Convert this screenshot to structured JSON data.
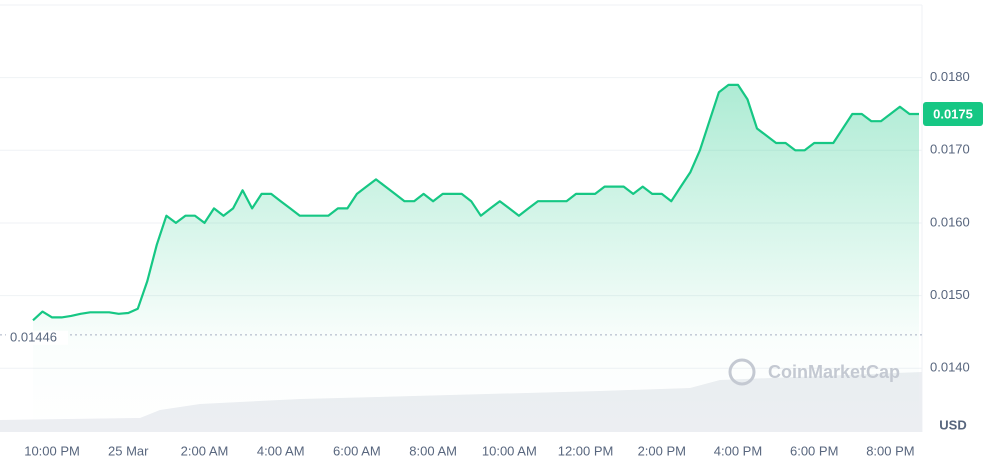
{
  "chart_data": {
    "type": "area",
    "values": [
      0.01466,
      0.01478,
      0.0147,
      0.0147,
      0.01472,
      0.01475,
      0.01477,
      0.01477,
      0.01477,
      0.01475,
      0.01476,
      0.01482,
      0.0152,
      0.0157,
      0.0161,
      0.016,
      0.0161,
      0.0161,
      0.016,
      0.0162,
      0.0161,
      0.0162,
      0.01645,
      0.0162,
      0.0164,
      0.0164,
      0.0163,
      0.0162,
      0.0161,
      0.0161,
      0.0161,
      0.0161,
      0.0162,
      0.0162,
      0.0164,
      0.0165,
      0.0166,
      0.0165,
      0.0164,
      0.0163,
      0.0163,
      0.0164,
      0.0163,
      0.0164,
      0.0164,
      0.0164,
      0.0163,
      0.0161,
      0.0162,
      0.0163,
      0.0162,
      0.0161,
      0.0162,
      0.0163,
      0.0163,
      0.0163,
      0.0163,
      0.0164,
      0.0164,
      0.0164,
      0.0165,
      0.0165,
      0.0165,
      0.0164,
      0.0165,
      0.0164,
      0.0164,
      0.0163,
      0.0165,
      0.0167,
      0.017,
      0.0174,
      0.0178,
      0.0179,
      0.0179,
      0.0177,
      0.0173,
      0.0172,
      0.0171,
      0.0171,
      0.017,
      0.017,
      0.0171,
      0.0171,
      0.0171,
      0.0173,
      0.0175,
      0.0175,
      0.0174,
      0.0174,
      0.0175,
      0.0176,
      0.0175,
      0.0175
    ],
    "color": "#16c784",
    "xlim": [
      0,
      93
    ],
    "xticks": [
      {
        "value": 2,
        "label": "10:00 PM"
      },
      {
        "value": 10,
        "label": "25 Mar"
      },
      {
        "value": 18,
        "label": "2:00 AM"
      },
      {
        "value": 26,
        "label": "4:00 AM"
      },
      {
        "value": 34,
        "label": "6:00 AM"
      },
      {
        "value": 42,
        "label": "8:00 AM"
      },
      {
        "value": 50,
        "label": "10:00 AM"
      },
      {
        "value": 58,
        "label": "12:00 PM"
      },
      {
        "value": 66,
        "label": "2:00 PM"
      },
      {
        "value": 74,
        "label": "4:00 PM"
      },
      {
        "value": 82,
        "label": "6:00 PM"
      },
      {
        "value": 90,
        "label": "8:00 PM"
      }
    ],
    "ylim": [
      0.01315,
      0.019
    ],
    "yticks": [
      {
        "value": 0.014,
        "label": "0.0140"
      },
      {
        "value": 0.015,
        "label": "0.0150"
      },
      {
        "value": 0.016,
        "label": "0.0160"
      },
      {
        "value": 0.017,
        "label": "0.0170"
      },
      {
        "value": 0.018,
        "label": "0.0180"
      }
    ],
    "grid": true,
    "current_price": {
      "value": 0.0175,
      "label": "0.0175"
    },
    "reference_line": {
      "value": 0.01446
    },
    "currency": "USD",
    "watermark": "CoinMarketCap"
  }
}
